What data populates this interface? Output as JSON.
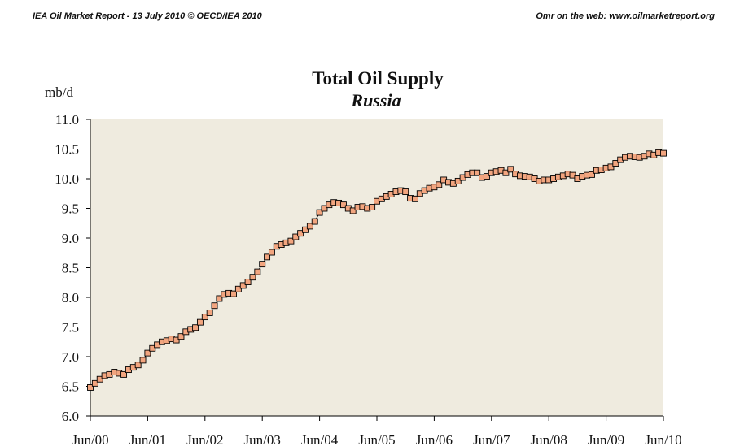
{
  "header": {
    "left": "IEA Oil Market Report - 13 July 2010      © OECD/IEA 2010",
    "right": "Omr on the web: www.oilmarketreport.org"
  },
  "chart_data": {
    "type": "line",
    "title": "Total Oil Supply",
    "subtitle": "Russia",
    "ylabel": "mb/d",
    "xlabel": "",
    "ylim": [
      6.0,
      11.0
    ],
    "yticks": [
      "6.0",
      "6.5",
      "7.0",
      "7.5",
      "8.0",
      "8.5",
      "9.0",
      "9.5",
      "10.0",
      "10.5",
      "11.0"
    ],
    "xticks": [
      "Jun/00",
      "Jun/01",
      "Jun/02",
      "Jun/03",
      "Jun/04",
      "Jun/05",
      "Jun/06",
      "Jun/07",
      "Jun/08",
      "Jun/09",
      "Jun/10"
    ],
    "x_start": "Jun/00",
    "x_end": "Jun/10",
    "grid": false,
    "colors": {
      "plot_bg": "#efebdf",
      "marker_fill": "#f2a57f",
      "line": "#000000"
    },
    "series": [
      {
        "values": [
          6.48,
          6.55,
          6.62,
          6.68,
          6.7,
          6.74,
          6.72,
          6.7,
          6.78,
          6.82,
          6.86,
          6.94,
          7.06,
          7.14,
          7.2,
          7.25,
          7.27,
          7.3,
          7.28,
          7.34,
          7.42,
          7.46,
          7.49,
          7.58,
          7.67,
          7.74,
          7.86,
          7.98,
          8.05,
          8.07,
          8.06,
          8.14,
          8.2,
          8.26,
          8.34,
          8.43,
          8.56,
          8.68,
          8.76,
          8.86,
          8.89,
          8.92,
          8.95,
          9.02,
          9.08,
          9.14,
          9.2,
          9.28,
          9.43,
          9.5,
          9.56,
          9.6,
          9.59,
          9.56,
          9.5,
          9.46,
          9.52,
          9.53,
          9.5,
          9.52,
          9.62,
          9.66,
          9.7,
          9.74,
          9.78,
          9.8,
          9.78,
          9.67,
          9.66,
          9.75,
          9.8,
          9.84,
          9.86,
          9.9,
          9.98,
          9.94,
          9.92,
          9.96,
          10.02,
          10.07,
          10.1,
          10.1,
          10.02,
          10.04,
          10.1,
          10.12,
          10.14,
          10.1,
          10.16,
          10.08,
          10.05,
          10.04,
          10.03,
          10.0,
          9.96,
          9.98,
          9.98,
          10.0,
          10.03,
          10.05,
          10.08,
          10.06,
          10.0,
          10.04,
          10.06,
          10.07,
          10.14,
          10.15,
          10.18,
          10.2,
          10.26,
          10.32,
          10.36,
          10.38,
          10.37,
          10.36,
          10.38,
          10.42,
          10.4,
          10.44,
          10.43
        ]
      }
    ]
  }
}
